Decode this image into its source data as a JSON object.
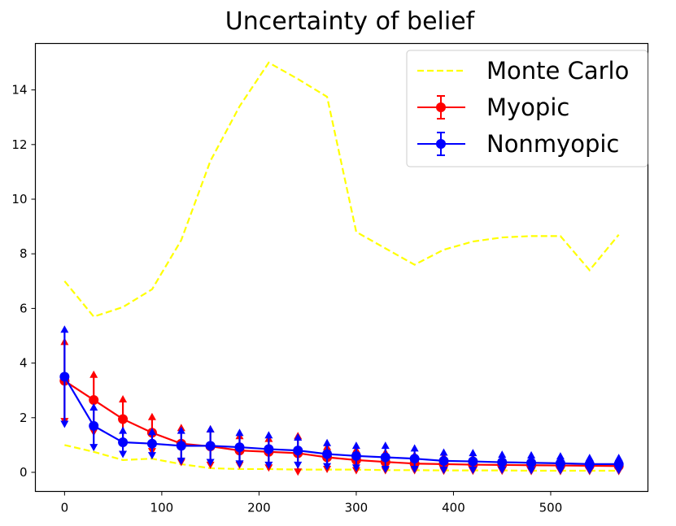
{
  "chart_data": {
    "type": "line",
    "title": "Uncertainty of belief",
    "xlabel": "",
    "ylabel": "",
    "xlim": [
      -30,
      600
    ],
    "ylim": [
      -0.7,
      15.7
    ],
    "xticks": [
      0,
      100,
      200,
      300,
      400,
      500
    ],
    "yticks": [
      0,
      2,
      4,
      6,
      8,
      10,
      12,
      14
    ],
    "legend_position": "top-right",
    "grid": false,
    "series": [
      {
        "name": "Monte Carlo",
        "style": "dashed",
        "color": "#ffff00",
        "x": [
          0,
          30,
          60,
          90,
          120,
          150,
          180,
          210,
          240,
          270,
          300,
          330,
          360,
          390,
          420,
          450,
          480,
          510,
          540,
          570
        ],
        "values": [
          7.0,
          5.7,
          6.05,
          6.7,
          8.5,
          11.4,
          13.4,
          15.0,
          14.4,
          13.75,
          8.8,
          8.2,
          7.6,
          8.15,
          8.45,
          8.6,
          8.65,
          8.65,
          7.4,
          8.7
        ],
        "lower": [
          1.0,
          0.75,
          0.45,
          0.5,
          0.3,
          0.15,
          0.12,
          0.12,
          0.1,
          0.1,
          0.1,
          0.08,
          0.08,
          0.07,
          0.07,
          0.07,
          0.06,
          0.06,
          0.06,
          0.06
        ]
      },
      {
        "name": "Myopic",
        "style": "errorbar",
        "color": "#ff0000",
        "x": [
          0,
          30,
          60,
          90,
          120,
          150,
          180,
          210,
          240,
          270,
          300,
          330,
          360,
          390,
          420,
          450,
          480,
          510,
          540,
          570
        ],
        "values": [
          3.35,
          2.65,
          1.95,
          1.45,
          1.05,
          0.95,
          0.8,
          0.75,
          0.7,
          0.55,
          0.45,
          0.38,
          0.32,
          0.3,
          0.28,
          0.27,
          0.26,
          0.25,
          0.24,
          0.23
        ],
        "err_low": [
          1.9,
          1.5,
          1.05,
          0.8,
          0.4,
          0.3,
          0.3,
          0.2,
          0.05,
          0.15,
          0.1,
          0.1,
          0.1,
          0.08,
          0.08,
          0.08,
          0.07,
          0.07,
          0.07,
          0.07
        ],
        "err_high": [
          4.75,
          3.55,
          2.65,
          2.0,
          1.6,
          1.55,
          1.3,
          1.2,
          1.3,
          0.9,
          0.8,
          0.7,
          0.6,
          0.55,
          0.5,
          0.45,
          0.45,
          0.45,
          0.42,
          0.4
        ]
      },
      {
        "name": "Nonmyopic",
        "style": "errorbar",
        "color": "#0000ff",
        "x": [
          0,
          30,
          60,
          90,
          120,
          150,
          180,
          210,
          240,
          270,
          300,
          330,
          360,
          390,
          420,
          450,
          480,
          510,
          540,
          570
        ],
        "values": [
          3.5,
          1.7,
          1.1,
          1.05,
          0.97,
          0.97,
          0.92,
          0.85,
          0.8,
          0.67,
          0.6,
          0.55,
          0.5,
          0.42,
          0.4,
          0.37,
          0.35,
          0.33,
          0.3,
          0.3
        ],
        "err_low": [
          1.8,
          0.95,
          0.7,
          0.65,
          0.45,
          0.4,
          0.35,
          0.3,
          0.3,
          0.25,
          0.2,
          0.15,
          0.15,
          0.12,
          0.12,
          0.12,
          0.1,
          0.1,
          0.1,
          0.1
        ],
        "err_high": [
          5.2,
          2.35,
          1.5,
          1.45,
          1.5,
          1.55,
          1.42,
          1.33,
          1.25,
          1.05,
          0.95,
          0.95,
          0.85,
          0.7,
          0.68,
          0.62,
          0.6,
          0.56,
          0.5,
          0.5
        ]
      }
    ]
  }
}
